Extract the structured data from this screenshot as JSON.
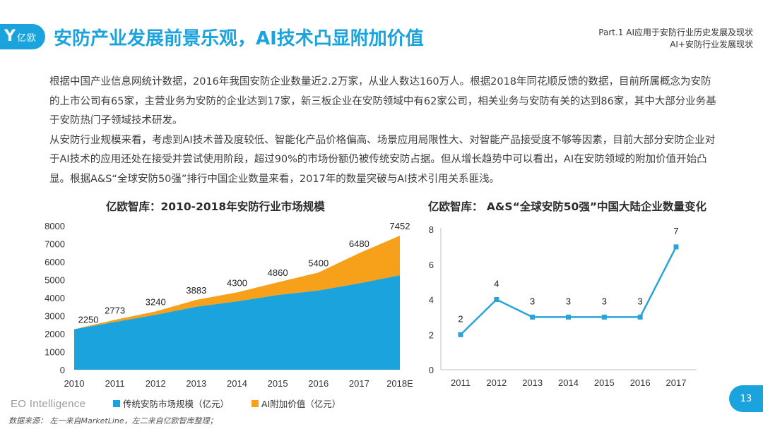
{
  "brand": {
    "logo_glyph": "Y",
    "logo_text": "亿欧"
  },
  "page_title": "安防产业发展前景乐观，AI技术凸显附加价值",
  "part_title": {
    "line1": "Part.1 AI应用于安防行业历史发展及现状",
    "line2": "AI+安防行业发展现状"
  },
  "body": {
    "para1": "根据中国产业信息网统计数据，2016年我国安防企业数量近2.2万家，从业人数达160万人。根据2018年同花顺反馈的数据，目前所属概念为安防的上市公司有65家，主营业务为安防的企业达到17家，新三板企业在安防领域中有62家公司，相关业务与安防有关的达到86家，其中大部分业务基于安防热门子领域技术研发。",
    "para2": "从安防行业规模来看，考虑到AI技术普及度较低、智能化产品价格偏高、场景应用局限性大、对智能产品接受度不够等因素，目前大部分安防企业对于AI技术的应用还处在接受并尝试使用阶段，超过90%的市场份额仍被传统安防占据。但从增长趋势中可以看出，AI在安防领域的附加价值开始凸显。根据A&S“全球安防50强”排行中国企业数量来看，2017年的数量突破与AI技术引用关系匪浅。"
  },
  "colors": {
    "accent": "#1aa3dd",
    "orange": "#f7a11a",
    "line_blue": "#29a3d8"
  },
  "chart_data": [
    {
      "type": "area",
      "title": "亿欧智库：2010-2018年安防行业市场规模",
      "categories": [
        "2010",
        "2011",
        "2012",
        "2013",
        "2014",
        "2015",
        "2016",
        "2017",
        "2018E"
      ],
      "series": [
        {
          "name": "传统安防市场规模（亿元）",
          "values": [
            2250,
            2650,
            3050,
            3500,
            3800,
            4150,
            4400,
            4800,
            5250
          ]
        },
        {
          "name": "AI附加价值（亿元）",
          "values": [
            0,
            123,
            190,
            383,
            500,
            710,
            1000,
            1680,
            2202
          ]
        }
      ],
      "totals": [
        2250,
        2773,
        3240,
        3883,
        4300,
        4860,
        5400,
        6480,
        7452
      ],
      "yticks": [
        0,
        1000,
        2000,
        3000,
        4000,
        5000,
        6000,
        7000,
        8000
      ],
      "ylim": [
        0,
        8000
      ],
      "legend": "bottom",
      "grid": false
    },
    {
      "type": "line",
      "title": "亿欧智库： A&S“全球安防50强”中国大陆企业数量变化",
      "categories": [
        "2011",
        "2012",
        "2013",
        "2014",
        "2015",
        "2016",
        "2017"
      ],
      "values": [
        2,
        4,
        3,
        3,
        3,
        3,
        7
      ],
      "yticks": [
        0,
        2,
        4,
        6,
        8
      ],
      "ylim": [
        0,
        8
      ],
      "grid": false
    }
  ],
  "footer": {
    "eo_brand": "EO Intelligence",
    "source": "数据来源： 左一来自MarketLine，左二来自亿欧智库整理；",
    "page_number": "13"
  }
}
